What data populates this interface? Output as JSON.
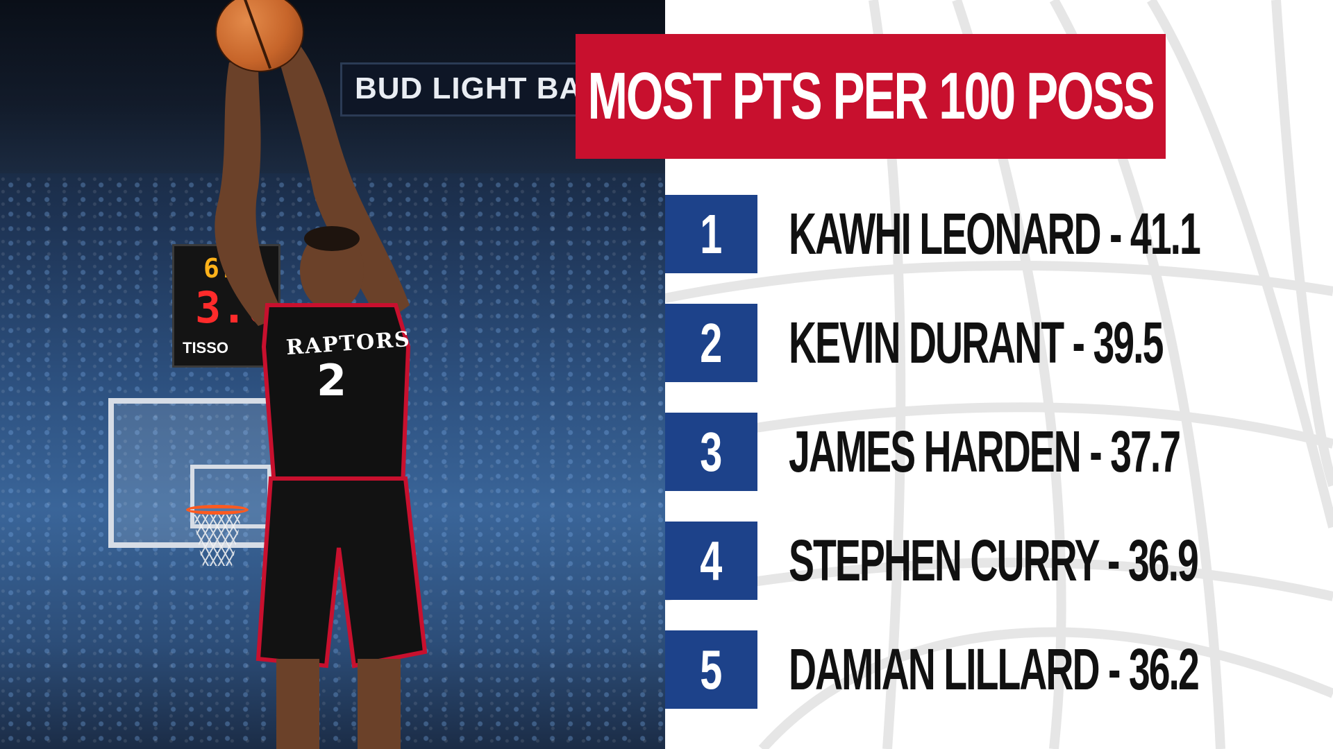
{
  "title": "MOST PTS PER 100 POSS",
  "rankings": [
    {
      "rank": "1",
      "label": "KAWHI LEONARD - 41.1"
    },
    {
      "rank": "2",
      "label": "KEVIN DURANT - 39.5"
    },
    {
      "rank": "3",
      "label": "JAMES HARDEN - 37.7"
    },
    {
      "rank": "4",
      "label": "STEPHEN CURRY - 36.9"
    },
    {
      "rank": "5",
      "label": "DAMIAN LILLARD - 36.2"
    }
  ],
  "photo": {
    "banner": "BUD LIGHT BA",
    "clock_top": "6:",
    "clock_main": "3.0",
    "clock_brand": "TISSO",
    "jersey_text": "RAPTORS",
    "jersey_number": "2"
  },
  "colors": {
    "title_bg": "#c8102e",
    "rank_bg": "#1d428a",
    "text": "#111111"
  }
}
